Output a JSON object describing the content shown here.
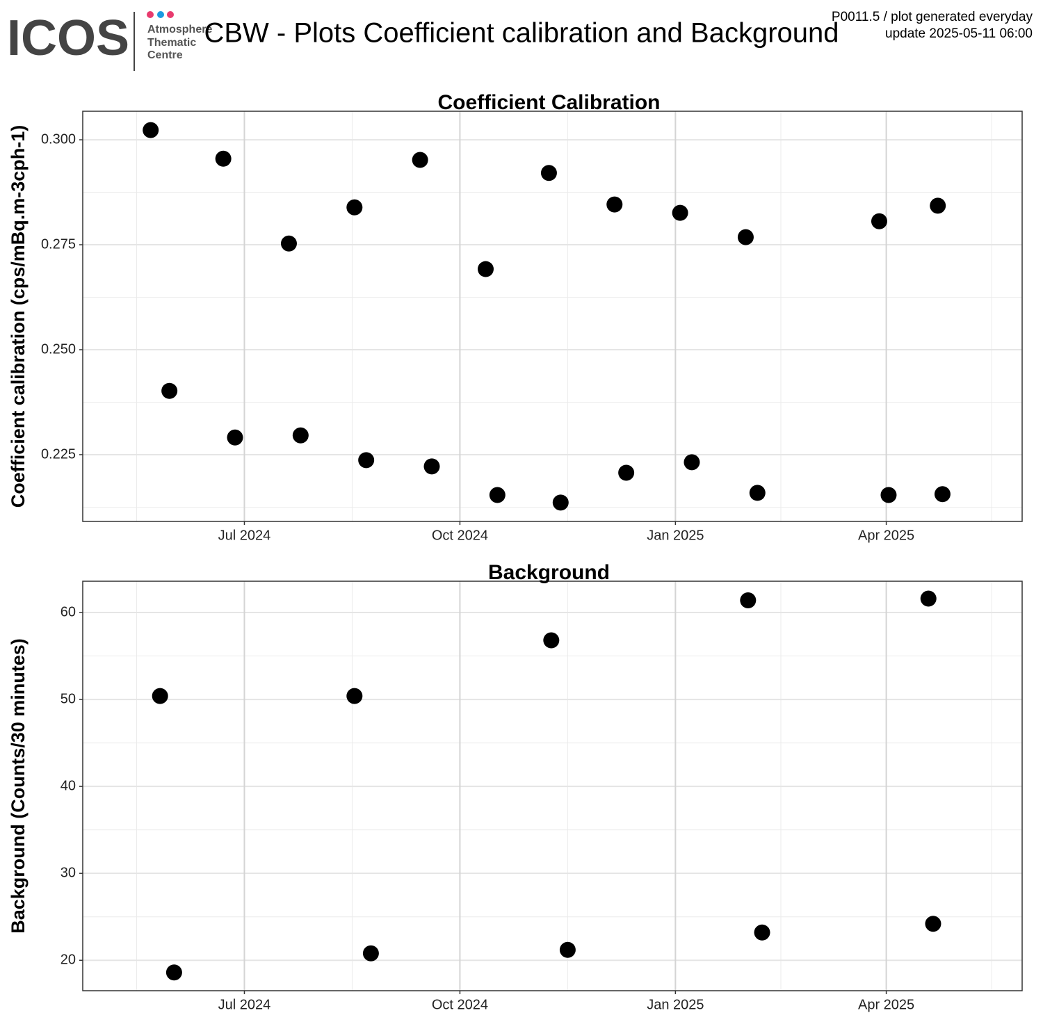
{
  "header": {
    "logo": "ICOS",
    "logo_lines": [
      "Atmosphere",
      "Thematic",
      "Centre"
    ],
    "title": "CBW - Plots Coefficient calibration and Background",
    "notes": [
      "P0011.5 / plot generated everyday",
      "update  2025-05-11 06:00"
    ]
  },
  "chart_data": [
    {
      "type": "scatter",
      "title": "Coefficient Calibration",
      "y_label": "Coefficient calibration (cps/mBq.m-3cph-1)",
      "color": "#000000",
      "grid": true,
      "x": [
        "2024-05-22",
        "2024-05-30",
        "2024-06-22",
        "2024-06-27",
        "2024-07-20",
        "2024-07-25",
        "2024-08-17",
        "2024-08-22",
        "2024-09-14",
        "2024-09-19",
        "2024-10-12",
        "2024-10-17",
        "2024-11-08",
        "2024-11-13",
        "2024-12-06",
        "2024-12-11",
        "2025-01-03",
        "2025-01-08",
        "2025-01-31",
        "2025-02-05",
        "2025-03-29",
        "2025-04-02",
        "2025-04-23",
        "2025-04-25"
      ],
      "values": [
        0.3023,
        0.2402,
        0.2955,
        0.2291,
        0.2753,
        0.2296,
        0.2839,
        0.2237,
        0.2952,
        0.2222,
        0.2692,
        0.2154,
        0.2921,
        0.2136,
        0.2846,
        0.2207,
        0.2826,
        0.2232,
        0.2768,
        0.2159,
        0.2806,
        0.2154,
        0.2843,
        0.2156
      ],
      "xlim": [
        "2024-04-23",
        "2025-05-29"
      ],
      "xticks": [
        {
          "value": "2024-07-01",
          "label": "Jul 2024"
        },
        {
          "value": "2024-10-01",
          "label": "Oct 2024"
        },
        {
          "value": "2025-01-01",
          "label": "Jan 2025"
        },
        {
          "value": "2025-04-01",
          "label": "Apr 2025"
        }
      ],
      "ylim": [
        0.2091,
        0.3068
      ],
      "yticks": [
        0.225,
        {
          "value": 0.25,
          "label": "0.250"
        },
        0.275,
        {
          "value": 0.3,
          "label": "0.300"
        }
      ]
    },
    {
      "type": "scatter",
      "title": "Background",
      "y_label": "Background (Counts/30 minutes)",
      "color": "#000000",
      "grid": true,
      "x": [
        "2024-05-26",
        "2024-06-01",
        "2024-08-17",
        "2024-08-24",
        "2024-11-09",
        "2024-11-16",
        "2025-02-01",
        "2025-02-07",
        "2025-04-19",
        "2025-04-21"
      ],
      "values": [
        50.4,
        18.6,
        50.4,
        20.8,
        56.8,
        21.2,
        61.4,
        23.2,
        61.6,
        24.2
      ],
      "xlim": [
        "2024-04-23",
        "2025-05-29"
      ],
      "xticks": [
        {
          "value": "2024-07-01",
          "label": "Jul 2024"
        },
        {
          "value": "2024-10-01",
          "label": "Oct 2024"
        },
        {
          "value": "2025-01-01",
          "label": "Jan 2025"
        },
        {
          "value": "2025-04-01",
          "label": "Apr 2025"
        }
      ],
      "ylim": [
        16.5,
        63.6
      ],
      "yticks": [
        20,
        30,
        40,
        50,
        60
      ]
    }
  ]
}
